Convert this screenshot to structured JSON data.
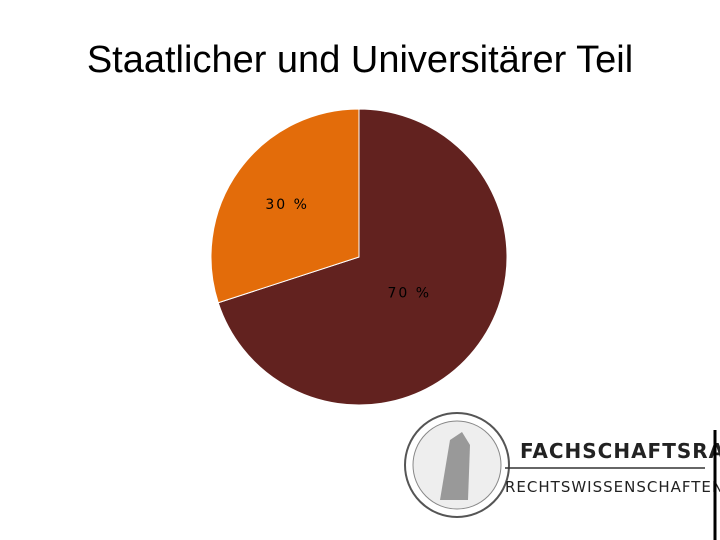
{
  "chart_data": {
    "type": "pie",
    "title": "Staatlicher und Universitärer Teil",
    "values": [
      70,
      30
    ],
    "value_labels": [
      "70 %",
      "30 %"
    ],
    "colors": [
      "#62221f",
      "#e36c0a"
    ]
  },
  "logo": {
    "title": "FACHSCHAFTSRAT",
    "subtitle": "RECHTSWISSENSCHAFTEN"
  }
}
